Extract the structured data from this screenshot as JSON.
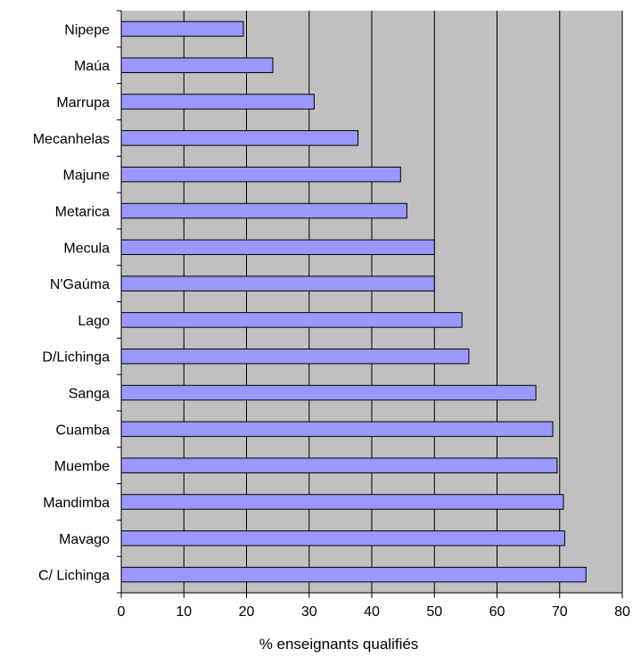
{
  "chart_data": {
    "type": "bar",
    "orientation": "horizontal",
    "title": "",
    "xlabel": "% enseignants qualifiés",
    "ylabel": "",
    "xlim": [
      0,
      80
    ],
    "xticks": [
      0,
      10,
      20,
      30,
      40,
      50,
      60,
      70,
      80
    ],
    "grid": true,
    "categories": [
      "Nipepe",
      "Maúa",
      "Marrupa",
      "Mecanhelas",
      "Majune",
      "Metarica",
      "Mecula",
      "N'Gaúma",
      "Lago",
      "D/Lichinga",
      "Sanga",
      "Cuamba",
      "Muembe",
      "Mandimba",
      "Mavago",
      "C/ Lichinga"
    ],
    "values": [
      19.5,
      24.2,
      30.8,
      37.8,
      44.6,
      45.6,
      50.0,
      50.0,
      54.4,
      55.5,
      66.2,
      68.9,
      69.6,
      70.6,
      70.8,
      74.2
    ],
    "colors": {
      "plot_background": "#c0c0c0",
      "bar_fill": "#9999ff",
      "bar_stroke": "#000000",
      "gridline": "#000000"
    }
  }
}
